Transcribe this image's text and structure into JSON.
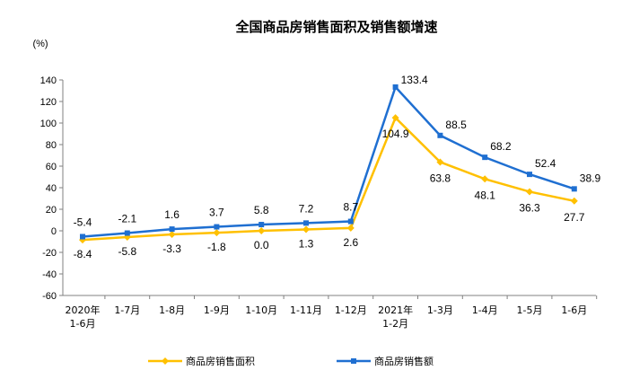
{
  "chart_data": {
    "type": "line",
    "title": "全国商品房销售面积及销售额增速",
    "ylabel": "(%)",
    "xlabel": "",
    "ylim": [
      -60,
      140
    ],
    "yticks": [
      140,
      120,
      100,
      80,
      60,
      40,
      20,
      0,
      -20,
      -40,
      -60
    ],
    "grid": false,
    "legend_position": "bottom",
    "categories": [
      [
        "2020年",
        "1-6月"
      ],
      [
        "1-7月"
      ],
      [
        "1-8月"
      ],
      [
        "1-9月"
      ],
      [
        "1-10月"
      ],
      [
        "1-11月"
      ],
      [
        "1-12月"
      ],
      [
        "2021年",
        "1-2月"
      ],
      [
        "1-3月"
      ],
      [
        "1-4月"
      ],
      [
        "1-5月"
      ],
      [
        "1-6月"
      ]
    ],
    "series": [
      {
        "name": "商品房销售面积",
        "color": "#FFC000",
        "marker": "diamond",
        "values": [
          -8.4,
          -5.8,
          -3.3,
          -1.8,
          0.0,
          1.3,
          2.6,
          104.9,
          63.8,
          48.1,
          36.3,
          27.7
        ],
        "labels": [
          "-8.4",
          "-5.8",
          "-3.3",
          "-1.8",
          "0.0",
          "1.3",
          "2.6",
          "104.9",
          "63.8",
          "48.1",
          "36.3",
          "27.7"
        ]
      },
      {
        "name": "商品房销售额",
        "color": "#1F6FD1",
        "marker": "square",
        "values": [
          -5.4,
          -2.1,
          1.6,
          3.7,
          5.8,
          7.2,
          8.7,
          133.4,
          88.5,
          68.2,
          52.4,
          38.9
        ],
        "labels": [
          "-5.4",
          "-2.1",
          "1.6",
          "3.7",
          "5.8",
          "7.2",
          "8.7",
          "133.4",
          "88.5",
          "68.2",
          "52.4",
          "38.9"
        ]
      }
    ]
  }
}
